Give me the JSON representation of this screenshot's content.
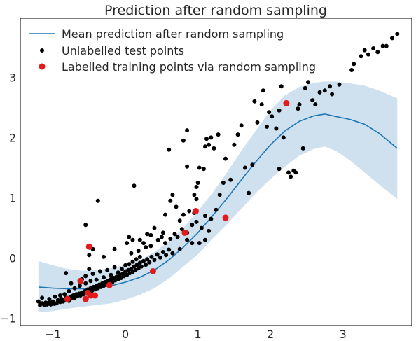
{
  "chart_data": {
    "type": "scatter",
    "title": "Prediction after random sampling",
    "xlabel": "",
    "ylabel": "",
    "xlim": [
      -1.45,
      3.95
    ],
    "ylim": [
      -1.12,
      3.98
    ],
    "xticks": [
      -1,
      0,
      1,
      2,
      3
    ],
    "yticks": [
      -1,
      0,
      1,
      2,
      3
    ],
    "xtick_labels": [
      "−1",
      "0",
      "1",
      "2",
      "3"
    ],
    "ytick_labels": [
      "−1",
      "0",
      "1",
      "2",
      "3"
    ],
    "grid": false,
    "legend_position": "top-left",
    "colors": {
      "mean_line": "#1f77b4",
      "band": "#cfe1ef",
      "test_points": "#000000",
      "train_points": "#e31a1c",
      "axes": "#262626"
    },
    "series": [
      {
        "name": "Mean prediction after random sampling",
        "kind": "line",
        "x": [
          -1.2,
          -1.0,
          -0.8,
          -0.6,
          -0.4,
          -0.2,
          0.0,
          0.2,
          0.4,
          0.6,
          0.8,
          1.0,
          1.2,
          1.4,
          1.6,
          1.8,
          2.0,
          2.2,
          2.4,
          2.6,
          2.75,
          2.9,
          3.1,
          3.3,
          3.5,
          3.75
        ],
        "y": [
          -0.48,
          -0.5,
          -0.51,
          -0.51,
          -0.49,
          -0.46,
          -0.4,
          -0.32,
          -0.2,
          -0.03,
          0.18,
          0.42,
          0.7,
          0.99,
          1.3,
          1.6,
          1.88,
          2.11,
          2.27,
          2.36,
          2.39,
          2.35,
          2.3,
          2.22,
          2.07,
          1.82
        ]
      },
      {
        "name": "Confidence band",
        "kind": "band",
        "x": [
          -1.2,
          -1.0,
          -0.8,
          -0.6,
          -0.4,
          -0.2,
          0.0,
          0.2,
          0.4,
          0.6,
          0.8,
          1.0,
          1.2,
          1.4,
          1.6,
          1.8,
          2.0,
          2.2,
          2.4,
          2.6,
          2.75,
          2.9,
          3.1,
          3.3,
          3.5,
          3.75
        ],
        "upper": [
          -0.05,
          -0.12,
          -0.18,
          -0.21,
          -0.2,
          -0.17,
          -0.11,
          -0.03,
          0.1,
          0.28,
          0.5,
          0.78,
          1.08,
          1.42,
          1.78,
          2.12,
          2.45,
          2.7,
          2.84,
          2.91,
          2.93,
          2.93,
          2.9,
          2.86,
          2.78,
          2.65
        ],
        "lower": [
          -0.9,
          -0.88,
          -0.84,
          -0.81,
          -0.78,
          -0.75,
          -0.69,
          -0.61,
          -0.5,
          -0.34,
          -0.14,
          0.06,
          0.32,
          0.56,
          0.82,
          1.08,
          1.31,
          1.52,
          1.7,
          1.81,
          1.85,
          1.78,
          1.62,
          1.42,
          1.22,
          0.98
        ]
      },
      {
        "name": "Unlabelled test points",
        "kind": "scatter",
        "points": [
          [
            -1.2,
            -0.72
          ],
          [
            -1.18,
            -0.78
          ],
          [
            -1.15,
            -0.75
          ],
          [
            -1.12,
            -0.78
          ],
          [
            -1.1,
            -0.74
          ],
          [
            -1.08,
            -0.77
          ],
          [
            -1.05,
            -0.73
          ],
          [
            -1.03,
            -0.77
          ],
          [
            -1.0,
            -0.72
          ],
          [
            -0.98,
            -0.76
          ],
          [
            -0.95,
            -0.75
          ],
          [
            -0.93,
            -0.7
          ],
          [
            -0.9,
            -0.73
          ],
          [
            -0.88,
            -0.68
          ],
          [
            -0.86,
            -0.72
          ],
          [
            -0.84,
            -0.7
          ],
          [
            -0.82,
            -0.66
          ],
          [
            -0.8,
            -0.69
          ],
          [
            -0.78,
            -0.71
          ],
          [
            -0.76,
            -0.64
          ],
          [
            -0.74,
            -0.67
          ],
          [
            -0.72,
            -0.62
          ],
          [
            -0.7,
            -0.66
          ],
          [
            -0.68,
            -0.6
          ],
          [
            -0.66,
            -0.63
          ],
          [
            -0.64,
            -0.59
          ],
          [
            -0.62,
            -0.62
          ],
          [
            -0.6,
            -0.57
          ],
          [
            -0.58,
            -0.6
          ],
          [
            -0.56,
            -0.55
          ],
          [
            -0.54,
            -0.58
          ],
          [
            -0.52,
            -0.52
          ],
          [
            -0.5,
            -0.56
          ],
          [
            -0.48,
            -0.5
          ],
          [
            -0.46,
            -0.54
          ],
          [
            -0.44,
            -0.48
          ],
          [
            -0.42,
            -0.52
          ],
          [
            -0.4,
            -0.46
          ],
          [
            -0.38,
            -0.5
          ],
          [
            -0.36,
            -0.44
          ],
          [
            -0.34,
            -0.48
          ],
          [
            -0.32,
            -0.42
          ],
          [
            -0.3,
            -0.46
          ],
          [
            -0.28,
            -0.4
          ],
          [
            -0.26,
            -0.44
          ],
          [
            -0.24,
            -0.38
          ],
          [
            -0.22,
            -0.42
          ],
          [
            -0.2,
            -0.35
          ],
          [
            -0.18,
            -0.4
          ],
          [
            -0.16,
            -0.33
          ],
          [
            -0.14,
            -0.37
          ],
          [
            -0.12,
            -0.31
          ],
          [
            -0.1,
            -0.35
          ],
          [
            -0.08,
            -0.28
          ],
          [
            -0.06,
            -0.33
          ],
          [
            -0.04,
            -0.26
          ],
          [
            -0.02,
            -0.3
          ],
          [
            0.0,
            -0.22
          ],
          [
            0.02,
            -0.28
          ],
          [
            0.04,
            -0.2
          ],
          [
            0.06,
            -0.25
          ],
          [
            0.08,
            -0.18
          ],
          [
            0.1,
            -0.23
          ],
          [
            0.12,
            -0.14
          ],
          [
            0.14,
            -0.2
          ],
          [
            0.16,
            -0.11
          ],
          [
            0.18,
            -0.17
          ],
          [
            0.2,
            -0.08
          ],
          [
            0.22,
            -0.14
          ],
          [
            0.25,
            -0.05
          ],
          [
            0.28,
            -0.11
          ],
          [
            0.3,
            -0.02
          ],
          [
            0.33,
            -0.07
          ],
          [
            0.36,
            0.02
          ],
          [
            0.4,
            -0.03
          ],
          [
            0.44,
            0.06
          ],
          [
            0.48,
            0.01
          ],
          [
            0.52,
            0.1
          ],
          [
            0.56,
            0.05
          ],
          [
            0.6,
            0.14
          ],
          [
            -1.15,
            -0.66
          ],
          [
            -1.05,
            -0.68
          ],
          [
            -0.97,
            -0.64
          ],
          [
            -0.9,
            -0.62
          ],
          [
            -0.84,
            -0.6
          ],
          [
            -0.78,
            -0.55
          ],
          [
            -0.7,
            -0.5
          ],
          [
            -0.63,
            -0.46
          ],
          [
            -0.55,
            -0.42
          ],
          [
            -0.48,
            -0.38
          ],
          [
            -0.4,
            -0.36
          ],
          [
            -0.3,
            -0.32
          ],
          [
            -0.2,
            -0.28
          ],
          [
            -0.1,
            -0.24
          ],
          [
            -0.05,
            -0.18
          ],
          [
            0.0,
            -0.12
          ],
          [
            0.05,
            -0.1
          ],
          [
            0.1,
            -0.06
          ],
          [
            0.15,
            -0.02
          ],
          [
            0.2,
            0.02
          ],
          [
            -0.75,
            -0.42
          ],
          [
            -0.6,
            -0.35
          ],
          [
            -0.55,
            -0.3
          ],
          [
            -0.45,
            -0.26
          ],
          [
            -0.35,
            -0.22
          ],
          [
            -0.25,
            -0.2
          ],
          [
            -0.15,
            -0.15
          ],
          [
            0.08,
            0.08
          ],
          [
            0.18,
            0.12
          ],
          [
            0.28,
            0.18
          ],
          [
            -0.82,
            -0.25
          ],
          [
            -0.5,
            -0.18
          ],
          [
            -0.3,
            0.02
          ],
          [
            -0.15,
            0.15
          ],
          [
            0.02,
            0.25
          ],
          [
            0.25,
            0.25
          ],
          [
            0.35,
            0.2
          ],
          [
            0.45,
            0.3
          ],
          [
            0.55,
            0.25
          ],
          [
            0.62,
            0.32
          ],
          [
            0.68,
            0.4
          ],
          [
            0.72,
            0.35
          ],
          [
            0.78,
            0.48
          ],
          [
            0.85,
            0.42
          ],
          [
            0.92,
            0.55
          ],
          [
            0.98,
            0.6
          ],
          [
            1.05,
            0.5
          ],
          [
            1.1,
            0.7
          ],
          [
            1.18,
            0.65
          ],
          [
            1.25,
            0.8
          ],
          [
            1.02,
            0.25
          ],
          [
            1.1,
            0.3
          ],
          [
            1.15,
            0.45
          ],
          [
            0.92,
            0.25
          ],
          [
            0.85,
            0.3
          ],
          [
            0.75,
            0.15
          ],
          [
            0.65,
            0.08
          ],
          [
            0.05,
            0.35
          ],
          [
            0.35,
            0.38
          ],
          [
            0.52,
            0.42
          ],
          [
            -0.5,
            0.05
          ],
          [
            -0.45,
            0.15
          ],
          [
            -0.55,
            0.55
          ],
          [
            -0.38,
            0.95
          ],
          [
            0.12,
            1.2
          ],
          [
            0.1,
            0.3
          ],
          [
            0.2,
            0.3
          ],
          [
            0.3,
            0.4
          ],
          [
            0.4,
            0.5
          ],
          [
            0.5,
            0.35
          ],
          [
            0.62,
            0.95
          ],
          [
            0.65,
            1.05
          ],
          [
            0.55,
            0.72
          ],
          [
            0.75,
            0.62
          ],
          [
            0.7,
            0.85
          ],
          [
            0.8,
            0.72
          ],
          [
            0.88,
            0.78
          ],
          [
            0.95,
            1.05
          ],
          [
            0.98,
            1.18
          ],
          [
            1.0,
            1.25
          ],
          [
            1.02,
            1.5
          ],
          [
            0.6,
            1.8
          ],
          [
            0.8,
            1.95
          ],
          [
            0.85,
            2.12
          ],
          [
            0.85,
            1.52
          ],
          [
            0.95,
            0.75
          ],
          [
            0.98,
            0.98
          ],
          [
            1.08,
            1.48
          ],
          [
            1.1,
            1.85
          ],
          [
            1.12,
            1.98
          ],
          [
            1.15,
            1.88
          ],
          [
            1.18,
            2.0
          ],
          [
            1.22,
            1.82
          ],
          [
            1.28,
            2.05
          ],
          [
            1.3,
            1.05
          ],
          [
            1.35,
            1.25
          ],
          [
            1.38,
            1.65
          ],
          [
            1.45,
            1.3
          ],
          [
            1.5,
            1.88
          ],
          [
            1.55,
            2.05
          ],
          [
            1.6,
            2.2
          ],
          [
            1.65,
            1.5
          ],
          [
            1.7,
            1.08
          ],
          [
            1.75,
            1.55
          ],
          [
            1.78,
            2.6
          ],
          [
            1.82,
            2.25
          ],
          [
            1.88,
            2.55
          ],
          [
            1.95,
            2.18
          ],
          [
            1.98,
            2.42
          ],
          [
            2.02,
            2.35
          ],
          [
            2.08,
            2.15
          ],
          [
            2.12,
            1.48
          ],
          [
            2.18,
            2.0
          ],
          [
            2.25,
            1.42
          ],
          [
            2.28,
            1.35
          ],
          [
            2.32,
            1.45
          ],
          [
            2.35,
            1.42
          ],
          [
            2.38,
            2.48
          ],
          [
            2.4,
            2.55
          ],
          [
            2.45,
            1.82
          ],
          [
            2.48,
            2.82
          ],
          [
            2.52,
            2.92
          ],
          [
            2.58,
            2.62
          ],
          [
            2.62,
            2.55
          ],
          [
            2.68,
            2.75
          ],
          [
            2.75,
            2.78
          ],
          [
            2.82,
            2.85
          ],
          [
            2.85,
            2.72
          ],
          [
            2.95,
            2.88
          ],
          [
            3.12,
            3.12
          ],
          [
            3.15,
            3.22
          ],
          [
            3.25,
            3.35
          ],
          [
            3.3,
            3.45
          ],
          [
            3.35,
            3.38
          ],
          [
            3.42,
            3.48
          ],
          [
            3.48,
            3.42
          ],
          [
            3.55,
            3.52
          ],
          [
            3.6,
            3.52
          ],
          [
            3.68,
            3.65
          ],
          [
            3.75,
            3.72
          ],
          [
            2.15,
            2.85
          ],
          [
            2.12,
            2.45
          ],
          [
            1.9,
            2.78
          ]
        ]
      },
      {
        "name": "Labelled training points via random sampling",
        "kind": "scatter",
        "points": [
          [
            -0.8,
            -0.68
          ],
          [
            -0.62,
            -0.38
          ],
          [
            -0.55,
            -0.68
          ],
          [
            -0.52,
            -0.58
          ],
          [
            -0.48,
            -0.62
          ],
          [
            -0.42,
            -0.62
          ],
          [
            -0.5,
            0.19
          ],
          [
            -0.22,
            -0.45
          ],
          [
            0.38,
            -0.22
          ],
          [
            0.82,
            0.42
          ],
          [
            0.97,
            0.78
          ],
          [
            1.38,
            0.67
          ],
          [
            2.22,
            2.57
          ]
        ]
      }
    ]
  }
}
